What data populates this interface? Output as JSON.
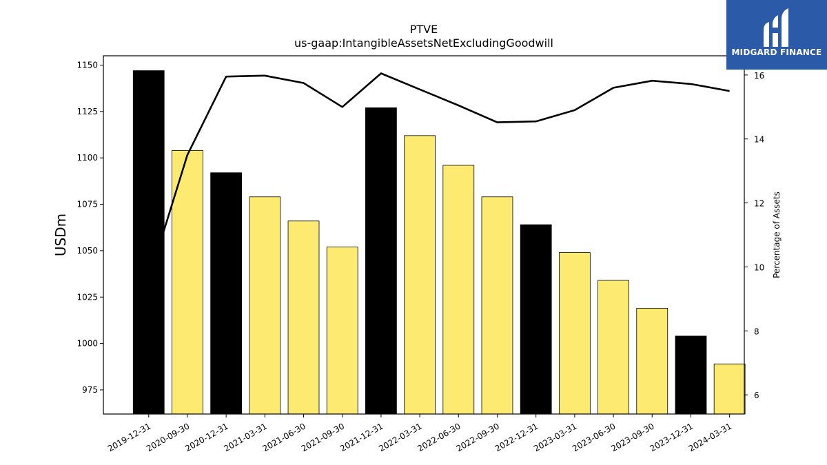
{
  "chart_data": {
    "type": "bar",
    "title": "PTVE",
    "subtitle": "us-gaap:IntangibleAssetsNetExcludingGoodwill",
    "ylabel": "USDm",
    "y2label": "Percentage of Assets",
    "ylim": [
      962,
      1155
    ],
    "y2lim": [
      5.4,
      16.6
    ],
    "yticks": [
      975,
      1000,
      1025,
      1050,
      1075,
      1100,
      1125,
      1150
    ],
    "y2ticks": [
      6,
      8,
      10,
      12,
      14,
      16
    ],
    "grid": false,
    "categories": [
      "2019-12-31",
      "2020-09-30",
      "2020-12-31",
      "2021-03-31",
      "2021-06-30",
      "2021-09-30",
      "2021-12-31",
      "2022-03-31",
      "2022-06-30",
      "2022-09-30",
      "2022-12-31",
      "2023-03-31",
      "2023-06-30",
      "2023-09-30",
      "2023-12-31",
      "2024-03-31"
    ],
    "series": [
      {
        "type": "bar",
        "values": [
          1147,
          1104,
          1092,
          1079,
          1066,
          1052,
          1127,
          1112,
          1096,
          1079,
          1064,
          1049,
          1034,
          1019,
          1004,
          989
        ],
        "fiscal_year_end": [
          true,
          false,
          true,
          false,
          false,
          false,
          true,
          false,
          false,
          false,
          true,
          false,
          false,
          false,
          true,
          false
        ]
      },
      {
        "type": "line",
        "axis": "right",
        "values": [
          9.6,
          13.5,
          15.95,
          15.98,
          15.75,
          15.0,
          16.05,
          15.55,
          15.05,
          14.52,
          14.55,
          14.9,
          15.6,
          15.82,
          15.72,
          15.5
        ]
      }
    ],
    "colors": {
      "annual_bar": "#000000",
      "quarter_bar": "#fdeb71",
      "bar_edge": "#000000",
      "line": "#000000"
    }
  },
  "logo": {
    "text": "MIDGARD FINANCE",
    "background": "#2b5aa8"
  }
}
